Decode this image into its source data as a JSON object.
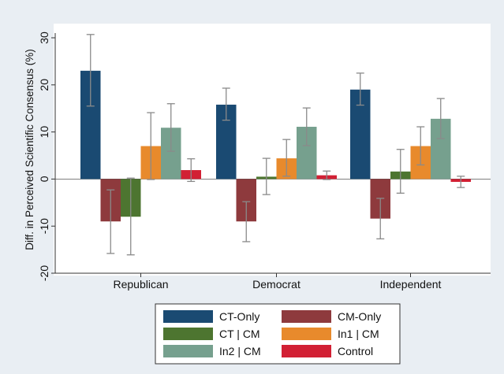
{
  "chart_data": {
    "type": "bar",
    "title": "",
    "xlabel": "",
    "ylabel": "Diff. in Perceived Scientific Consensus (%)",
    "ylim": [
      -20,
      30
    ],
    "yticks": [
      "-20",
      "-10",
      "0",
      "10",
      "20",
      "30"
    ],
    "grid": false,
    "legend_position": "bottom",
    "categories": [
      "Republican",
      "Democrat",
      "Independent"
    ],
    "series": [
      {
        "name": "CT-Only",
        "color": "#1a4a72",
        "values": [
          23.0,
          15.8,
          19.0
        ],
        "err_low": [
          15.5,
          12.5,
          15.7
        ],
        "err_high": [
          30.7,
          19.3,
          22.5
        ]
      },
      {
        "name": "CM-Only",
        "color": "#8e3a3d",
        "values": [
          -9.0,
          -9.0,
          -8.4
        ],
        "err_low": [
          -15.8,
          -13.3,
          -12.7
        ],
        "err_high": [
          -2.3,
          -4.8,
          -4.1
        ]
      },
      {
        "name": "CT | CM",
        "color": "#4d7530",
        "values": [
          -8.0,
          0.5,
          1.6
        ],
        "err_low": [
          -16.1,
          -3.3,
          -3.0
        ],
        "err_high": [
          0.2,
          4.4,
          6.3
        ]
      },
      {
        "name": "In1 | CM",
        "color": "#e88a2c",
        "values": [
          7.0,
          4.4,
          7.0
        ],
        "err_low": [
          -0.1,
          0.6,
          3.0
        ],
        "err_high": [
          14.1,
          8.4,
          11.1
        ]
      },
      {
        "name": "In2 | CM",
        "color": "#76a08e",
        "values": [
          10.9,
          11.1,
          12.8
        ],
        "err_low": [
          5.9,
          7.1,
          8.6
        ],
        "err_high": [
          16.0,
          15.1,
          17.1
        ]
      },
      {
        "name": "Control",
        "color": "#d22034",
        "values": [
          1.9,
          0.8,
          -0.6
        ],
        "err_low": [
          -0.5,
          -0.1,
          -1.8
        ],
        "err_high": [
          4.3,
          1.7,
          0.6
        ]
      }
    ]
  }
}
